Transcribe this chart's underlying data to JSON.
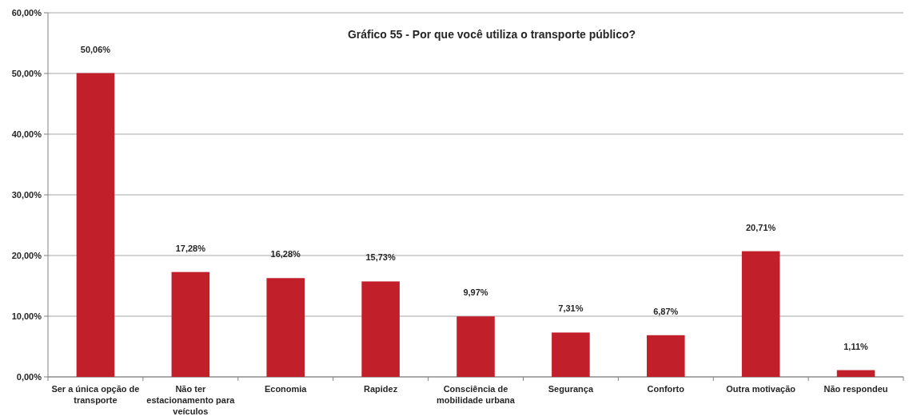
{
  "chart_data": {
    "type": "bar",
    "title": "Gráfico 55 - Por que você utiliza o transporte público?",
    "categories": [
      "Ser a única opção de transporte",
      "Não ter estacionamento para veículos",
      "Economia",
      "Rapidez",
      "Consciência de mobilidade urbana",
      "Segurança",
      "Conforto",
      "Outra motivação",
      "Não respondeu"
    ],
    "values": [
      50.06,
      17.28,
      16.28,
      15.73,
      9.97,
      7.31,
      6.87,
      20.71,
      1.11
    ],
    "value_labels": [
      "50,06%",
      "17,28%",
      "16,28%",
      "15,73%",
      "9,97%",
      "7,31%",
      "6,87%",
      "20,71%",
      "1,11%"
    ],
    "color": "#c1202a",
    "ylim": [
      0,
      60
    ],
    "yticks": [
      {
        "value": 0,
        "label": "0,00%"
      },
      {
        "value": 10,
        "label": "10,00%"
      },
      {
        "value": 20,
        "label": "20,00%"
      },
      {
        "value": 30,
        "label": "30,00%"
      },
      {
        "value": 40,
        "label": "40,00%"
      },
      {
        "value": 50,
        "label": "50,00%"
      },
      {
        "value": 60,
        "label": "60,00%"
      }
    ],
    "grid": "y"
  }
}
